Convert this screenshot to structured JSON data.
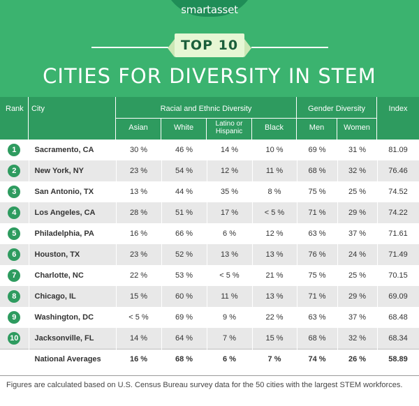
{
  "header": {
    "brand": "smartasset",
    "banner": "TOP 10",
    "title": "CITIES FOR DIVERSITY IN STEM"
  },
  "columns": {
    "rank": "Rank",
    "city": "City",
    "racial_group": "Racial and Ethnic Diversity",
    "gender_group": "Gender Diversity",
    "index": "Index",
    "asian": "Asian",
    "white": "White",
    "latino": "Latino or Hispanic",
    "black": "Black",
    "men": "Men",
    "women": "Women"
  },
  "rows": [
    {
      "rank": "1",
      "city": "Sacramento, CA",
      "asian": "30 %",
      "white": "46 %",
      "latino": "14 %",
      "black": "10 %",
      "men": "69 %",
      "women": "31 %",
      "index": "81.09"
    },
    {
      "rank": "2",
      "city": "New York, NY",
      "asian": "23 %",
      "white": "54 %",
      "latino": "12 %",
      "black": "11 %",
      "men": "68 %",
      "women": "32 %",
      "index": "76.46"
    },
    {
      "rank": "3",
      "city": "San Antonio, TX",
      "asian": "13 %",
      "white": "44 %",
      "latino": "35 %",
      "black": "8 %",
      "men": "75 %",
      "women": "25 %",
      "index": "74.52"
    },
    {
      "rank": "4",
      "city": "Los Angeles, CA",
      "asian": "28 %",
      "white": "51 %",
      "latino": "17 %",
      "black": "< 5 %",
      "men": "71 %",
      "women": "29 %",
      "index": "74.22"
    },
    {
      "rank": "5",
      "city": "Philadelphia, PA",
      "asian": "16 %",
      "white": "66 %",
      "latino": "6 %",
      "black": "12 %",
      "men": "63 %",
      "women": "37 %",
      "index": "71.61"
    },
    {
      "rank": "6",
      "city": "Houston, TX",
      "asian": "23 %",
      "white": "52 %",
      "latino": "13 %",
      "black": "13 %",
      "men": "76 %",
      "women": "24 %",
      "index": "71.49"
    },
    {
      "rank": "7",
      "city": "Charlotte, NC",
      "asian": "22 %",
      "white": "53 %",
      "latino": "< 5 %",
      "black": "21 %",
      "men": "75 %",
      "women": "25 %",
      "index": "70.15"
    },
    {
      "rank": "8",
      "city": "Chicago, IL",
      "asian": "15 %",
      "white": "60 %",
      "latino": "11 %",
      "black": "13 %",
      "men": "71 %",
      "women": "29 %",
      "index": "69.09"
    },
    {
      "rank": "9",
      "city": "Washington, DC",
      "asian": "< 5 %",
      "white": "69 %",
      "latino": "9 %",
      "black": "22 %",
      "men": "63 %",
      "women": "37 %",
      "index": "68.48"
    },
    {
      "rank": "10",
      "city": "Jacksonville, FL",
      "asian": "14 %",
      "white": "64 %",
      "latino": "7 %",
      "black": "15 %",
      "men": "68 %",
      "women": "32 %",
      "index": "68.34"
    }
  ],
  "averages": {
    "label": "National Averages",
    "asian": "16 %",
    "white": "68 %",
    "latino": "6 %",
    "black": "7 %",
    "men": "74 %",
    "women": "26 %",
    "index": "58.89"
  },
  "footnote": "Figures are calculated based on U.S. Census Bureau survey data for the 50 cities with the largest STEM workforces.",
  "colors": {
    "header_green": "#3bb36f",
    "table_header_green": "#2e9b5f",
    "banner_fill": "#e6f7d4",
    "row_stripe": "#e8e8e8"
  }
}
